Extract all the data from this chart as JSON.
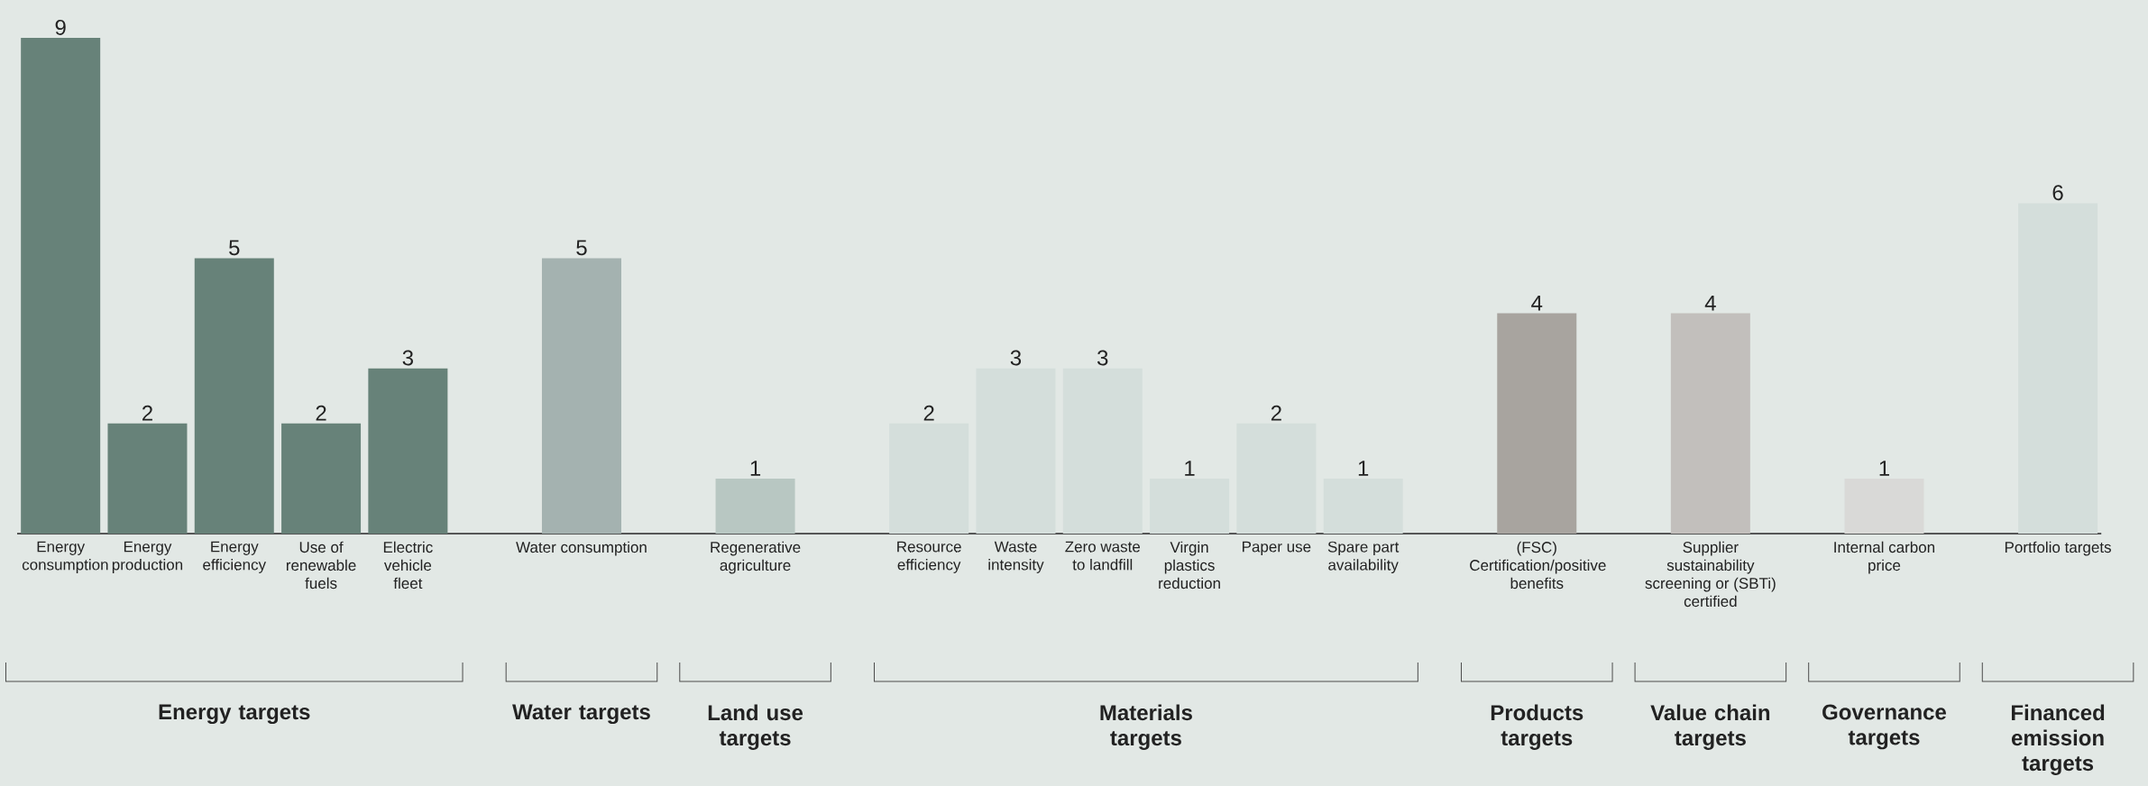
{
  "chart_data": {
    "type": "bar",
    "categories": [
      "Energy consumption",
      "Energy production",
      "Energy efficiency",
      "Use of renewable fuels",
      "Electric vehicle fleet",
      null,
      "Water consumption",
      null,
      "Regenerative agriculture",
      null,
      "Resource efficiency",
      "Waste intensity",
      "Zero waste to landfill",
      "Virgin plastics reduction",
      "Paper use",
      "Spare part availability",
      null,
      "(FSC) Certification/positive benefits",
      null,
      "Supplier sustainability screening or (SBTi) certified",
      null,
      "Internal carbon price",
      null,
      "Portfolio targets"
    ],
    "values": [
      9,
      2,
      5,
      2,
      3,
      null,
      5,
      null,
      1,
      null,
      2,
      3,
      3,
      1,
      2,
      1,
      null,
      4,
      null,
      4,
      null,
      1,
      null,
      6
    ],
    "colors": [
      "#678279",
      "#678279",
      "#678279",
      "#678279",
      "#678279",
      null,
      "#a4b2b0",
      null,
      "#b8c7c2",
      null,
      "#d4dedb",
      "#d4dedb",
      "#d4dedb",
      "#d4dedb",
      "#d4dedb",
      "#d4dedb",
      null,
      "#a8a49f",
      null,
      "#c2bfbc",
      null,
      "#d9d9d7",
      null,
      "#d4dedb"
    ],
    "data_labels": true,
    "annotations": [
      "Energy targets",
      "Water targets",
      "Land use targets",
      "Materials targets",
      "Products targets",
      "Value chain targets",
      "Governance targets",
      "Financed emission targets"
    ]
  }
}
